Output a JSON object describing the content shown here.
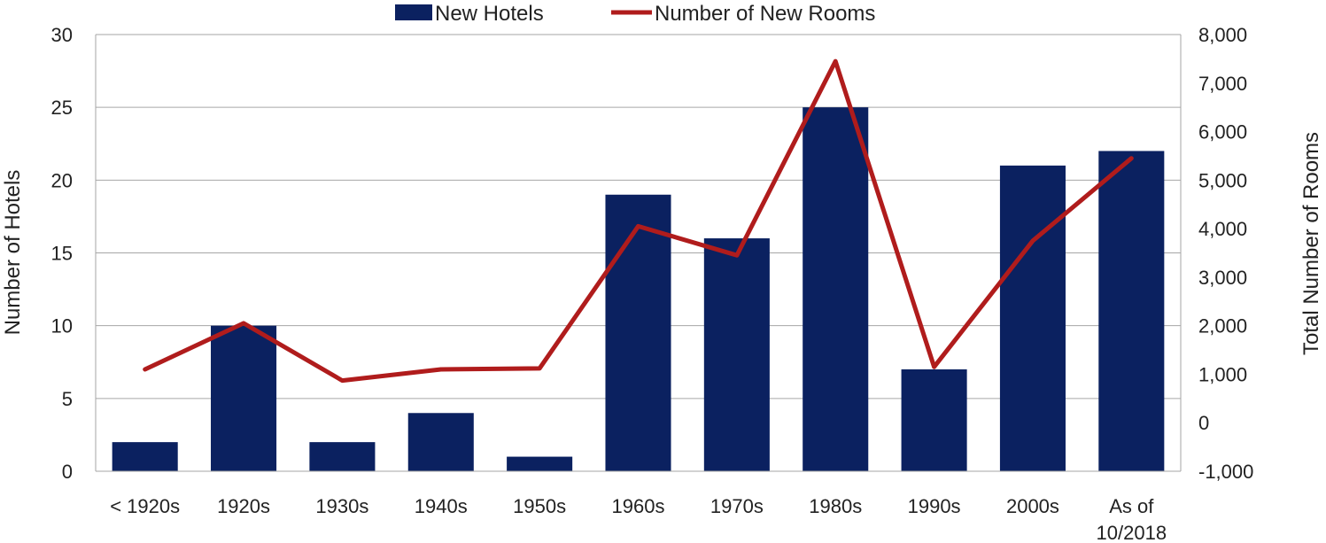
{
  "chart_data": {
    "type": "bar",
    "categories": [
      "< 1920s",
      "1920s",
      "1930s",
      "1940s",
      "1950s",
      "1960s",
      "1970s",
      "1980s",
      "1990s",
      "2000s",
      "As of 10/2018"
    ],
    "series": [
      {
        "name": "New Hotels",
        "type": "bar",
        "axis": "left",
        "color": "#0b2160",
        "values": [
          2,
          10,
          2,
          4,
          1,
          19,
          16,
          25,
          7,
          21,
          22
        ]
      },
      {
        "name": "Number of New Rooms",
        "type": "line",
        "axis": "right",
        "color": "#b01c1c",
        "values": [
          1100,
          2050,
          870,
          1100,
          1120,
          4050,
          3450,
          7450,
          1150,
          3750,
          5450
        ]
      }
    ],
    "ylabel": "Number of Hotels",
    "y2label": "Total Number of Rooms",
    "ylim": [
      0,
      30
    ],
    "yticks": [
      0,
      5,
      10,
      15,
      20,
      25,
      30
    ],
    "y2lim": [
      -1000,
      8000
    ],
    "y2ticks": [
      -1000,
      0,
      1000,
      2000,
      3000,
      4000,
      5000,
      6000,
      7000,
      8000
    ],
    "grid": true,
    "legend_position": "top-center"
  }
}
